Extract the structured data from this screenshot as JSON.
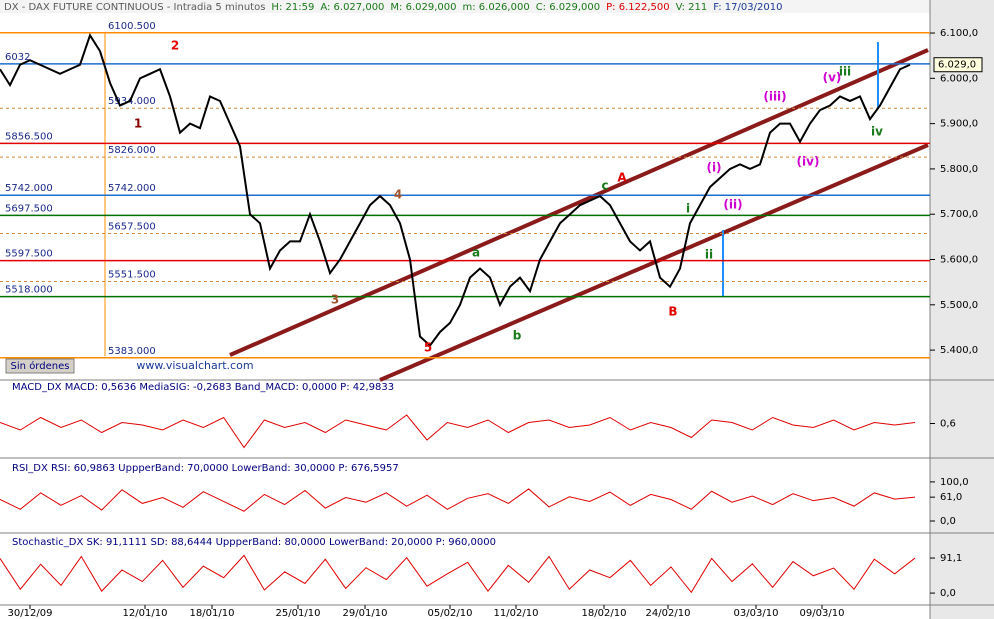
{
  "chart_data": [
    {
      "type": "line",
      "header": [
        "DX - DAX FUTURE CONTINUOUS - Intradia 5 minutos",
        "H: 21:59",
        "A: 6.027,000",
        "M: 6.029,000",
        "m: 6.026,000",
        "C: 6.029,000",
        "P: 6.122,500",
        "V: 211",
        "F: 17/03/2010"
      ],
      "series": [
        {
          "color": "#000000",
          "values": [
            6020,
            5985,
            6030,
            6040,
            6030,
            6020,
            6010,
            6020,
            6030,
            6095,
            6060,
            5990,
            5940,
            5950,
            6000,
            6010,
            6020,
            5960,
            5880,
            5900,
            5890,
            5960,
            5950,
            5900,
            5850,
            5700,
            5680,
            5580,
            5620,
            5640,
            5640,
            5700,
            5640,
            5570,
            5600,
            5640,
            5680,
            5720,
            5740,
            5720,
            5680,
            5600,
            5430,
            5410,
            5440,
            5460,
            5500,
            5560,
            5580,
            5560,
            5500,
            5540,
            5560,
            5530,
            5600,
            5640,
            5680,
            5700,
            5720,
            5730,
            5740,
            5720,
            5680,
            5640,
            5620,
            5640,
            5560,
            5540,
            5580,
            5680,
            5720,
            5760,
            5780,
            5800,
            5810,
            5800,
            5810,
            5880,
            5900,
            5900,
            5860,
            5900,
            5930,
            5940,
            5960,
            5950,
            5960,
            5910,
            5940,
            5980,
            6020,
            6030
          ]
        }
      ],
      "xlim": [
        0,
        93
      ],
      "xticks": [
        {
          "value": 3,
          "label": "30/12/09"
        },
        {
          "value": 14.5,
          "label": "12/01/10"
        },
        {
          "value": 21.2,
          "label": "18/01/10"
        },
        {
          "value": 29.8,
          "label": "25/01/10"
        },
        {
          "value": 36.5,
          "label": "29/01/10"
        },
        {
          "value": 45,
          "label": "05/02/10"
        },
        {
          "value": 51.6,
          "label": "11/02/10"
        },
        {
          "value": 60.4,
          "label": "18/02/10"
        },
        {
          "value": 66.8,
          "label": "24/02/10"
        },
        {
          "value": 75.6,
          "label": "03/03/10"
        },
        {
          "value": 82.2,
          "label": "09/03/10"
        }
      ],
      "ylim": [
        5334,
        6142
      ],
      "yticks": [
        {
          "value": 6100,
          "label": "6.100,0"
        },
        {
          "value": 6000,
          "label": "6.000,0"
        },
        {
          "value": 5900,
          "label": "5.900,0"
        },
        {
          "value": 5800,
          "label": "5.800,0"
        },
        {
          "value": 5700,
          "label": "5.700,0"
        },
        {
          "value": 5600,
          "label": "5.600,0"
        },
        {
          "value": 5500,
          "label": "5.500,0"
        },
        {
          "value": 5400,
          "label": "5.400,0"
        }
      ],
      "price_label": "6.029,0",
      "levels": [
        {
          "value": 6100.5,
          "label": "6100.500",
          "color": "#ff8c00"
        },
        {
          "value": 6032,
          "label": "6032",
          "color": "#1e6fd0"
        },
        {
          "value": 5934,
          "label": "5934.000",
          "color": "#d08a3a",
          "dashed": true
        },
        {
          "value": 5856.5,
          "label": "5856.500",
          "color": "#e00000"
        },
        {
          "value": 5826,
          "label": "5826.000",
          "color": "#d08a3a",
          "dashed": true
        },
        {
          "value": 5742,
          "label": "5742.000",
          "color": "#1e6fd0"
        },
        {
          "value": 5697.5,
          "label": "5697.500",
          "color": "#007000"
        },
        {
          "value": 5657.5,
          "label": "5657.500",
          "color": "#d08a3a",
          "dashed": true
        },
        {
          "value": 5597.5,
          "label": "5597.500",
          "color": "#e00000"
        },
        {
          "value": 5551.5,
          "label": "5551.500",
          "color": "#d08a3a",
          "dashed": true
        },
        {
          "value": 5518,
          "label": "5518.000",
          "color": "#007000"
        },
        {
          "value": 5383,
          "label": "5383.000",
          "color": "#ff8c00"
        }
      ],
      "annotations": [
        "1",
        "2",
        "3",
        "4",
        "5",
        "a",
        "b",
        "c",
        "A",
        "B",
        "i",
        "ii",
        "iii",
        "iv",
        "(i)",
        "(ii)",
        "(iii)",
        "(iv)",
        "(v)"
      ],
      "button": "Sin órdenes",
      "watermark": "www.visualchart.com"
    },
    {
      "type": "line",
      "header": "MACD_DX  MACD: 0,5636  MediaSIG: -0,2683  Band_MACD: 0,0000  P: 42,9833",
      "series": [
        {
          "color": "#e00000",
          "values": [
            1,
            -2,
            3,
            -1,
            2,
            -3,
            1,
            0,
            -2,
            2,
            -1,
            3,
            -9,
            2,
            -1,
            1,
            -3,
            2,
            0,
            -2,
            4,
            -6,
            1,
            -1,
            2,
            -3,
            1,
            2,
            -1,
            0,
            3,
            -2,
            1,
            -1,
            -5,
            2,
            1,
            -2,
            3,
            0,
            -1,
            2,
            -2,
            1,
            0,
            1
          ]
        }
      ],
      "ylim": [
        -12,
        12
      ],
      "yticks": [
        {
          "value": 0.6,
          "label": "0,6"
        }
      ]
    },
    {
      "type": "line",
      "header": "RSI_DX  RSI: 60,9863  UppperBand: 70,0000  LowerBand: 30,0000  P: 676,5957",
      "series": [
        {
          "color": "#e00000",
          "values": [
            55,
            30,
            72,
            40,
            65,
            28,
            80,
            45,
            60,
            35,
            75,
            50,
            25,
            68,
            42,
            78,
            33,
            60,
            48,
            72,
            38,
            66,
            30,
            58,
            70,
            45,
            82,
            36,
            62,
            50,
            74,
            40,
            68,
            55,
            30,
            76,
            48,
            64,
            42,
            70,
            52,
            60,
            38,
            72,
            56,
            61
          ]
        }
      ],
      "ylim": [
        -23,
        156
      ],
      "yticks": [
        {
          "value": 100,
          "label": "100,0"
        },
        {
          "value": 61,
          "label": "61,0"
        },
        {
          "value": 0,
          "label": "0,0"
        }
      ]
    },
    {
      "type": "line",
      "header": "Stochastic_DX  SK: 91,1111  SD: 88,6444  UppperBand: 80,0000  LowerBand: 20,0000  P: 960,0000",
      "series": [
        {
          "color": "#e00000",
          "values": [
            90,
            10,
            75,
            20,
            95,
            5,
            60,
            30,
            85,
            15,
            70,
            40,
            98,
            8,
            55,
            25,
            88,
            12,
            66,
            35,
            92,
            18,
            50,
            80,
            5,
            72,
            28,
            95,
            10,
            60,
            40,
            85,
            20,
            68,
            2,
            90,
            30,
            76,
            15,
            82,
            45,
            65,
            10,
            88,
            50,
            91
          ]
        }
      ],
      "ylim": [
        -31,
        151
      ],
      "yticks": [
        {
          "value": 91.1,
          "label": "91,1"
        },
        {
          "value": 0,
          "label": "0,0"
        }
      ]
    }
  ]
}
